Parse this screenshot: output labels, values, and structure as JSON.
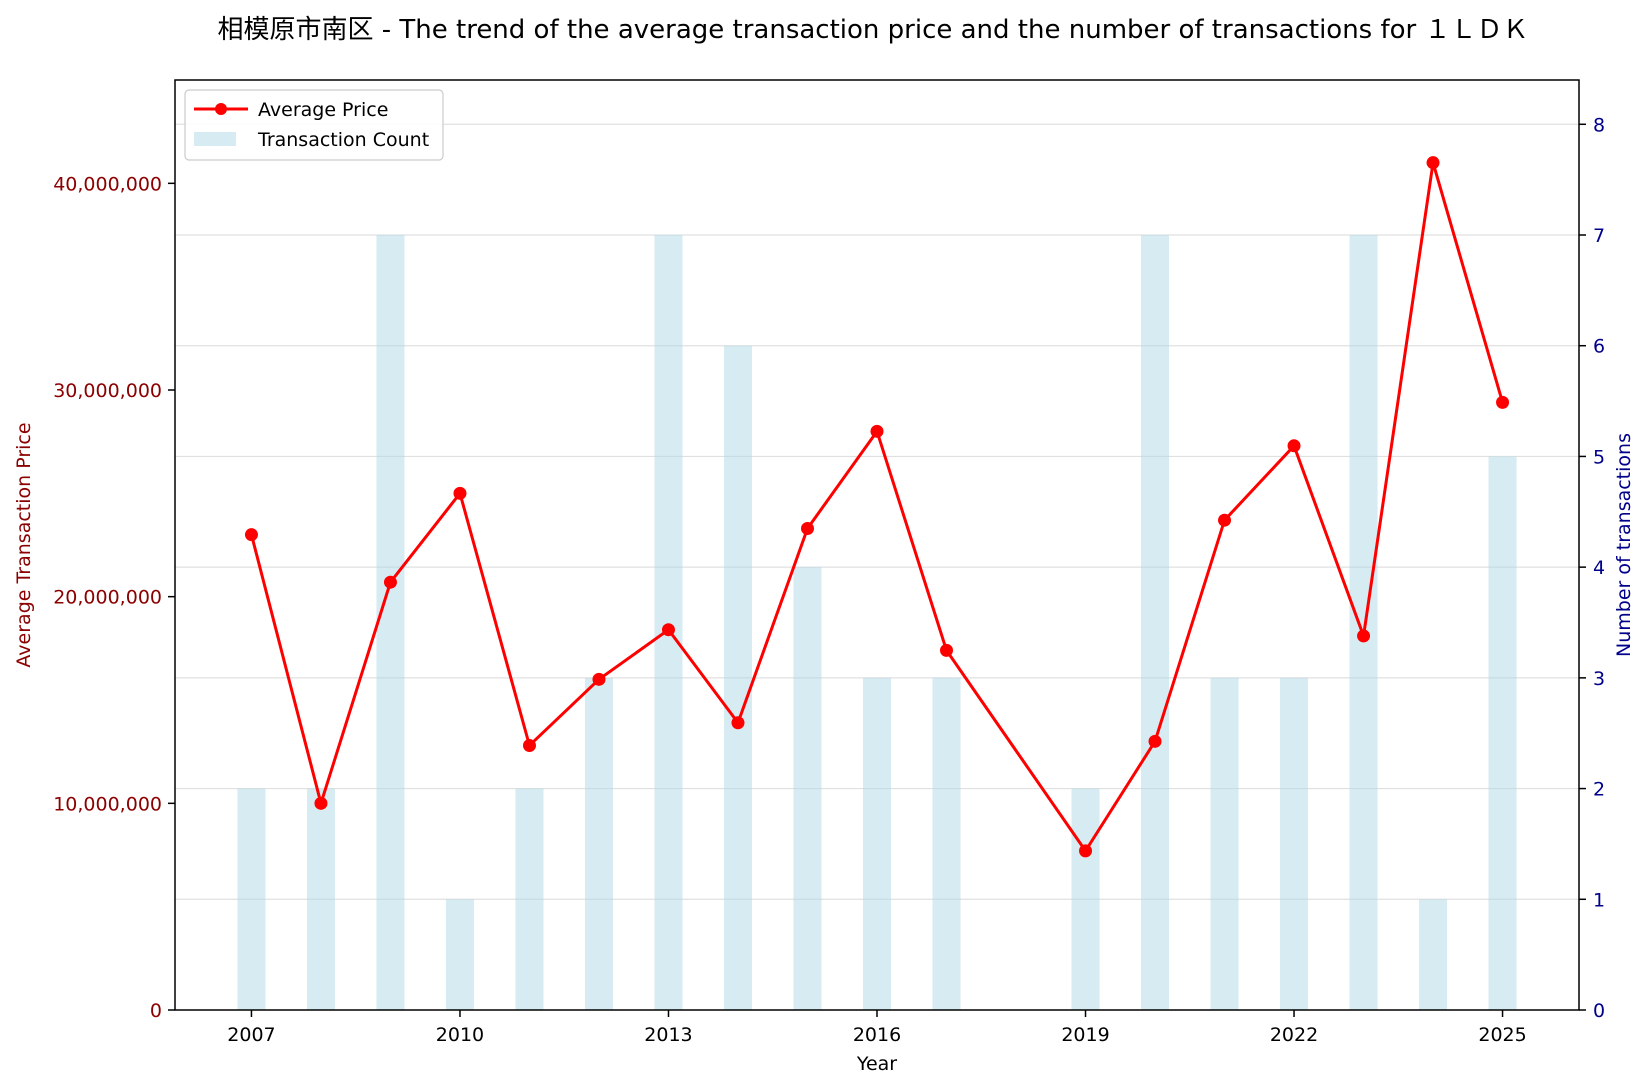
{
  "colors": {
    "price_line": "#ff0000",
    "bar_fill": "#add8e6",
    "left_axis": "#8b0000",
    "right_axis": "#00008b",
    "text": "#000000",
    "grid": "#e0e0e0"
  },
  "chart_data": {
    "type": "line+bar",
    "title": "相模原市南区 - The trend of the average transaction price and the number of transactions for １ＬＤＫ",
    "xlabel": "Year",
    "ylabel_left": "Average Transaction Price",
    "ylabel_right": "Number of transactions",
    "xlim": [
      2005.9,
      2026.1
    ],
    "ylim_left": [
      0,
      45000000
    ],
    "ylim_right": [
      0,
      8.4
    ],
    "x_ticks": [
      2007,
      2010,
      2013,
      2016,
      2019,
      2022,
      2025
    ],
    "x_tick_labels": [
      "2007",
      "2010",
      "2013",
      "2016",
      "2019",
      "2022",
      "2025"
    ],
    "y_left_ticks": [
      0,
      10000000,
      20000000,
      30000000,
      40000000
    ],
    "y_left_tick_labels": [
      "0",
      "10,000,000",
      "20,000,000",
      "30,000,000",
      "40,000,000"
    ],
    "y_right_ticks": [
      0,
      1,
      2,
      3,
      4,
      5,
      6,
      7,
      8
    ],
    "y_right_tick_labels": [
      "0",
      "1",
      "2",
      "3",
      "4",
      "5",
      "6",
      "7",
      "8"
    ],
    "grid": "horizontal (right axis)",
    "legend_position": "top-left",
    "series": [
      {
        "name": "Average Price",
        "kind": "line",
        "years": [
          2007,
          2008,
          2009,
          2010,
          2011,
          2012,
          2013,
          2014,
          2015,
          2016,
          2017,
          2019,
          2020,
          2021,
          2022,
          2023,
          2024,
          2025
        ],
        "values": [
          23000000,
          10000000,
          20700000,
          25000000,
          12800000,
          16000000,
          18400000,
          13900000,
          23300000,
          28000000,
          17400000,
          7700000,
          13000000,
          23700000,
          27300000,
          18100000,
          41000000,
          29400000
        ]
      },
      {
        "name": "Transaction Count",
        "kind": "bar",
        "years": [
          2007,
          2008,
          2009,
          2010,
          2011,
          2012,
          2013,
          2014,
          2015,
          2016,
          2017,
          2019,
          2020,
          2021,
          2022,
          2023,
          2024,
          2025
        ],
        "values": [
          2,
          2,
          7,
          1,
          2,
          3,
          7,
          6,
          4,
          3,
          3,
          2,
          7,
          3,
          3,
          7,
          1,
          5
        ]
      }
    ]
  }
}
